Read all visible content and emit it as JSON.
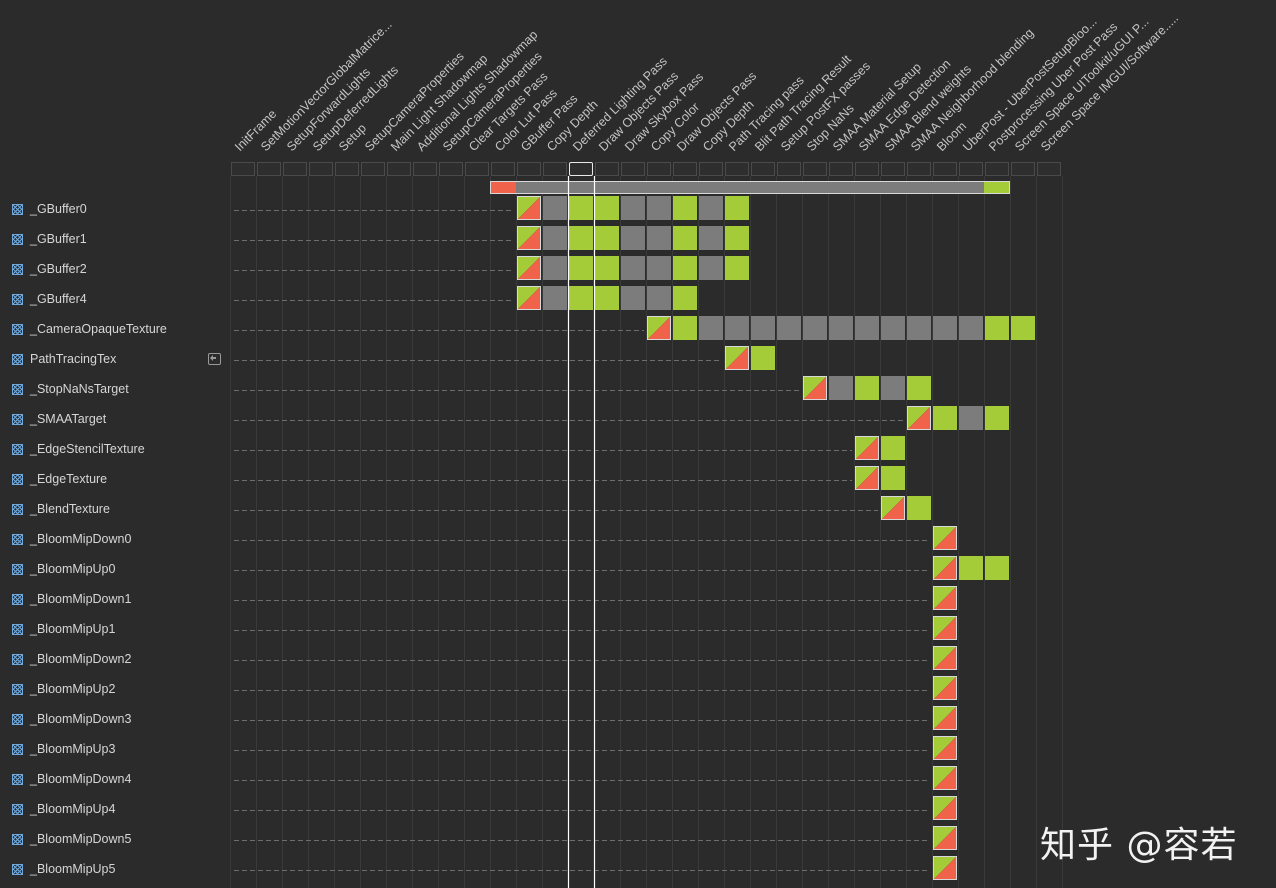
{
  "passes": [
    "InitFrame",
    "SetMotionVectorGlobalMatrice...",
    "SetupForwardLights",
    "SetupDeferredLights",
    "Setup",
    "SetupCameraProperties",
    "Main Light Shadowmap",
    "Additional Lights Shadowmap",
    "SetupCameraProperties",
    "Clear Targets Pass",
    "Color Lut Pass",
    "GBuffer Pass",
    "Copy Depth",
    "Deferred Lighting Pass",
    "Draw Objects Pass",
    "Draw Skybox Pass",
    "Copy Color",
    "Draw Objects Pass",
    "Copy Depth",
    "Path Tracing pass",
    "Blit Path Tracing Result",
    "Setup PostFX passes",
    "Stop NaNs",
    "SMAA Material Setup",
    "SMAA Edge Detection",
    "SMAA Blend weights",
    "SMAA Neighborhood blending",
    "Bloom",
    "UberPost - UberPostSetupBloo...",
    "Postprocessing Uber Post Pass",
    "Screen Space UIToolkit/uGUI P...",
    "Screen Space IMGUI/Software....."
  ],
  "selected_pass": 13,
  "backbuffer_row": {
    "start": 10,
    "cells": [
      "create",
      "r",
      "r",
      "r",
      "r",
      "r",
      "r",
      "r",
      "r",
      "r",
      "r",
      "r",
      "r",
      "r",
      "r",
      "r",
      "r",
      "r",
      "r",
      "w"
    ]
  },
  "resources": [
    {
      "name": "_GBuffer0",
      "imported": false,
      "start": 11,
      "cells": [
        "cw",
        "r",
        "w",
        "w",
        "r",
        "r",
        "w",
        "r",
        "w"
      ]
    },
    {
      "name": "_GBuffer1",
      "imported": false,
      "start": 11,
      "cells": [
        "cw",
        "r",
        "w",
        "w",
        "r",
        "r",
        "w",
        "r",
        "w"
      ]
    },
    {
      "name": "_GBuffer2",
      "imported": false,
      "start": 11,
      "cells": [
        "cw",
        "r",
        "w",
        "w",
        "r",
        "r",
        "w",
        "r",
        "w"
      ]
    },
    {
      "name": "_GBuffer4",
      "imported": false,
      "start": 11,
      "cells": [
        "cw",
        "r",
        "w",
        "w",
        "r",
        "r",
        "w"
      ]
    },
    {
      "name": "_CameraOpaqueTexture",
      "imported": false,
      "start": 16,
      "cells": [
        "cw",
        "w",
        "r",
        "r",
        "r",
        "r",
        "r",
        "r",
        "r",
        "r",
        "r",
        "r",
        "r",
        "w",
        "w"
      ]
    },
    {
      "name": "PathTracingTex",
      "imported": true,
      "start": 19,
      "cells": [
        "cw",
        "w"
      ]
    },
    {
      "name": "_StopNaNsTarget",
      "imported": false,
      "start": 22,
      "cells": [
        "cw",
        "r",
        "w",
        "r",
        "w"
      ]
    },
    {
      "name": "_SMAATarget",
      "imported": false,
      "start": 26,
      "cells": [
        "cw",
        "w",
        "r",
        "w"
      ]
    },
    {
      "name": "_EdgeStencilTexture",
      "imported": false,
      "start": 24,
      "cells": [
        "cw",
        "w"
      ]
    },
    {
      "name": "_EdgeTexture",
      "imported": false,
      "start": 24,
      "cells": [
        "cw",
        "w"
      ]
    },
    {
      "name": "_BlendTexture",
      "imported": false,
      "start": 25,
      "cells": [
        "cw",
        "w"
      ]
    },
    {
      "name": "_BloomMipDown0",
      "imported": false,
      "start": 27,
      "cells": [
        "cw"
      ]
    },
    {
      "name": "_BloomMipUp0",
      "imported": false,
      "start": 27,
      "cells": [
        "cw",
        "w",
        "w"
      ]
    },
    {
      "name": "_BloomMipDown1",
      "imported": false,
      "start": 27,
      "cells": [
        "cw"
      ]
    },
    {
      "name": "_BloomMipUp1",
      "imported": false,
      "start": 27,
      "cells": [
        "cw"
      ]
    },
    {
      "name": "_BloomMipDown2",
      "imported": false,
      "start": 27,
      "cells": [
        "cw"
      ]
    },
    {
      "name": "_BloomMipUp2",
      "imported": false,
      "start": 27,
      "cells": [
        "cw"
      ]
    },
    {
      "name": "_BloomMipDown3",
      "imported": false,
      "start": 27,
      "cells": [
        "cw"
      ]
    },
    {
      "name": "_BloomMipUp3",
      "imported": false,
      "start": 27,
      "cells": [
        "cw"
      ]
    },
    {
      "name": "_BloomMipDown4",
      "imported": false,
      "start": 27,
      "cells": [
        "cw"
      ]
    },
    {
      "name": "_BloomMipUp4",
      "imported": false,
      "start": 27,
      "cells": [
        "cw"
      ]
    },
    {
      "name": "_BloomMipDown5",
      "imported": false,
      "start": 27,
      "cells": [
        "cw"
      ]
    },
    {
      "name": "_BloomMipUp5",
      "imported": false,
      "start": 27,
      "cells": [
        "cw"
      ]
    }
  ],
  "colors": {
    "background": "#2b2b2b",
    "write": "#a4cb38",
    "read": "#7c7c7c",
    "create": "#f0624a",
    "selection": "#ffffff",
    "resource_icon": "#6fa8dc"
  },
  "icons": {
    "resource": "texture-icon",
    "imported": "import-icon"
  },
  "watermark": "知乎 @容若"
}
